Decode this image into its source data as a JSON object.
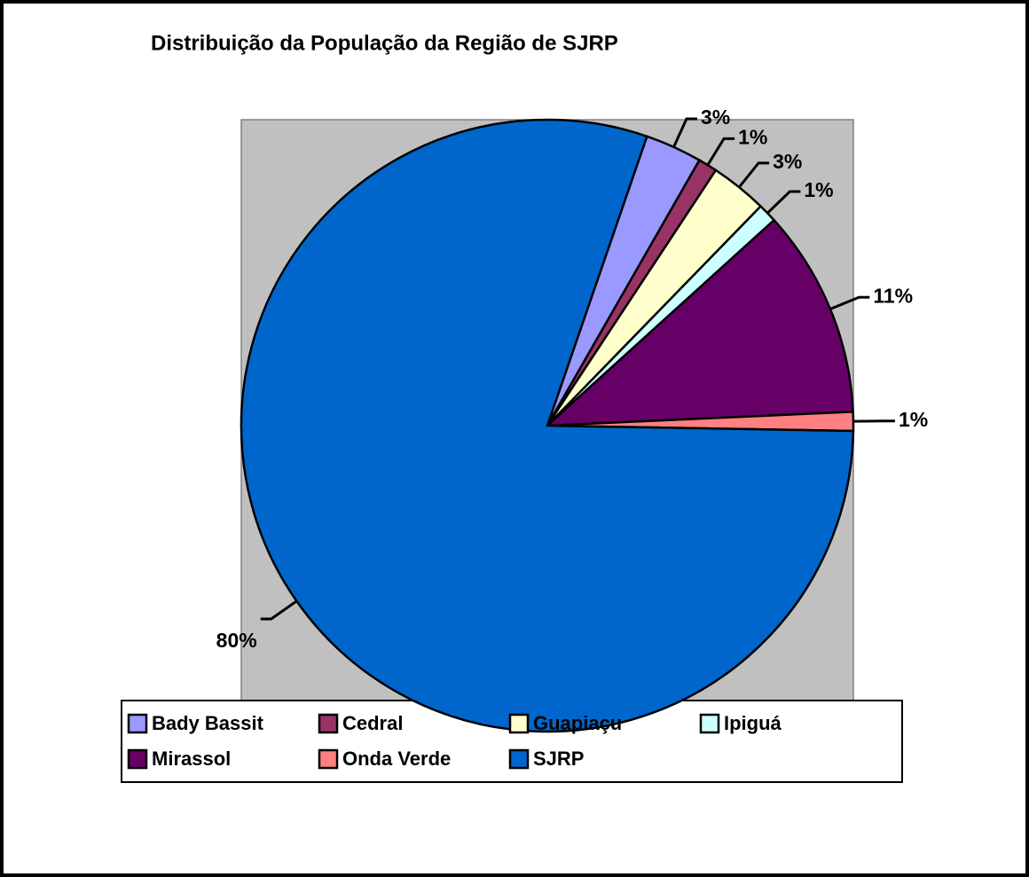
{
  "chart_data": {
    "type": "pie",
    "title": "Distribuição da População da Região de SJRP",
    "categories": [
      "Bady Bassit",
      "Cedral",
      "Guapiaçu",
      "Ipiguá",
      "Mirassol",
      "Onda Verde",
      "SJRP"
    ],
    "values": [
      3,
      1,
      3,
      1,
      11,
      1,
      80
    ],
    "value_labels": [
      "3%",
      "1%",
      "3%",
      "1%",
      "11%",
      "1%",
      "80%"
    ],
    "colors": [
      "#9999ff",
      "#993366",
      "#ffffcc",
      "#ccffff",
      "#660066",
      "#ff8080",
      "#0066cc"
    ],
    "legend": "bottom"
  }
}
